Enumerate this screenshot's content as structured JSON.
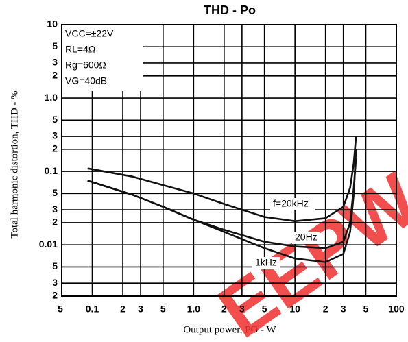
{
  "chart_data": {
    "type": "line",
    "title": "THD - Po",
    "x_label": "Output power, PO - W",
    "y_label": "Total harmonic distortion, THD - %",
    "annotations": [
      "VCC=±22V",
      "RL=4Ω",
      "Rg=600Ω",
      "VG=40dB"
    ],
    "watermark": "EEPW",
    "log_x": true,
    "log_y": true,
    "grid": true,
    "xlim": [
      0.05,
      100
    ],
    "ylim": [
      0.002,
      10
    ],
    "xticks": [
      {
        "value": 0.05,
        "label": "5"
      },
      0.1,
      {
        "value": 0.2,
        "label": "2"
      },
      {
        "value": 0.3,
        "label": "3"
      },
      {
        "value": 0.5,
        "label": "5"
      },
      {
        "value": 1,
        "label": "1.0"
      },
      {
        "value": 2,
        "label": "2"
      },
      {
        "value": 3,
        "label": "3"
      },
      {
        "value": 5,
        "label": "5"
      },
      10,
      {
        "value": 20,
        "label": "2"
      },
      {
        "value": 30,
        "label": "3"
      },
      {
        "value": 50,
        "label": "5"
      },
      100
    ],
    "yticks": [
      10,
      5,
      3,
      2,
      {
        "value": 1,
        "label": "1.0"
      },
      {
        "value": 0.5,
        "label": "5"
      },
      {
        "value": 0.3,
        "label": "3"
      },
      {
        "value": 0.2,
        "label": "2"
      },
      0.1,
      {
        "value": 0.05,
        "label": "5"
      },
      {
        "value": 0.03,
        "label": "3"
      },
      {
        "value": 0.02,
        "label": "2"
      },
      0.01,
      {
        "value": 0.005,
        "label": "5"
      },
      {
        "value": 0.003,
        "label": "3"
      },
      {
        "value": 0.002,
        "label": "2"
      }
    ],
    "x": [
      0.09,
      0.25,
      0.5,
      1,
      2,
      5,
      10,
      20,
      30,
      35,
      38,
      40
    ],
    "series": [
      {
        "name": "f=20kHz",
        "color": "#111111",
        "values": [
          0.11,
          0.085,
          0.065,
          0.05,
          0.036,
          0.024,
          0.021,
          0.023,
          0.033,
          0.06,
          0.13,
          0.3
        ]
      },
      {
        "name": "20Hz",
        "color": "#111111",
        "values": [
          0.075,
          0.048,
          0.033,
          0.022,
          0.016,
          0.011,
          0.0095,
          0.009,
          0.011,
          0.02,
          0.06,
          0.15
        ]
      },
      {
        "name": "1kHz",
        "color": "#111111",
        "values": [
          0.075,
          0.048,
          0.033,
          0.022,
          0.015,
          0.009,
          0.0065,
          0.0058,
          0.0075,
          0.015,
          0.05,
          0.2
        ]
      }
    ]
  }
}
